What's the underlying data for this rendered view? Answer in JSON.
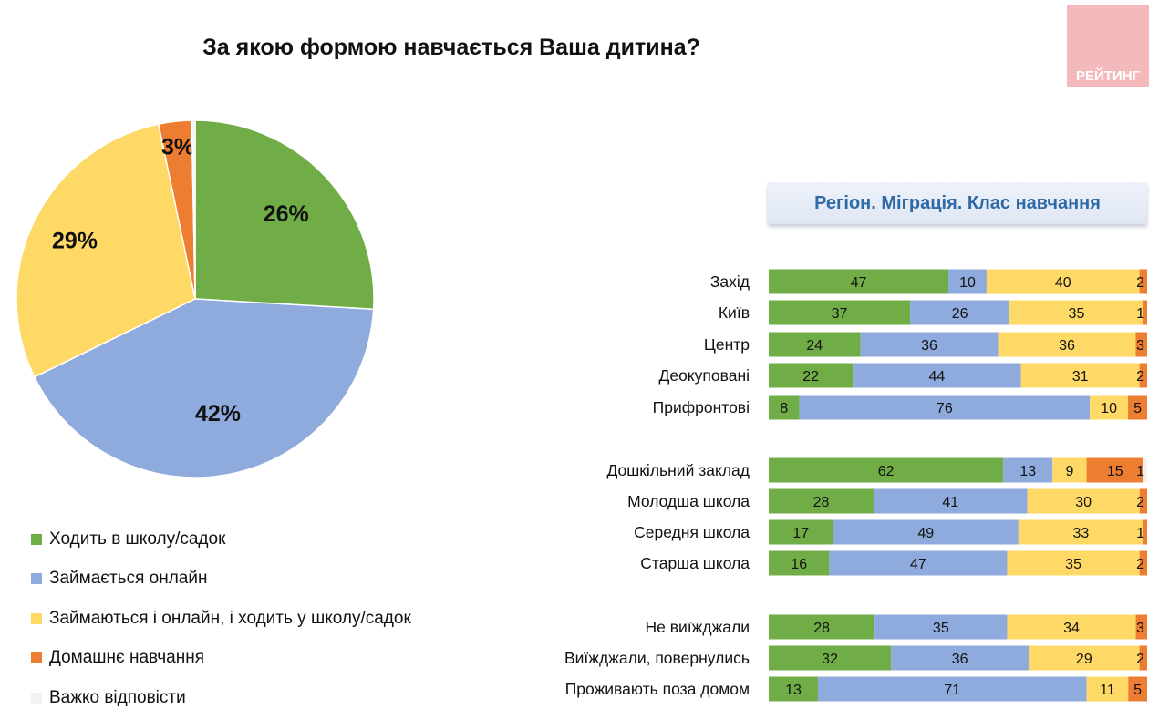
{
  "title": "За якою формою навчається Ваша дитина?",
  "logo_text": "РЕЙТИНГ",
  "bar_header": "Регіон. Міграція. Клас навчання",
  "colors": {
    "school": "#70ad47",
    "online": "#8faadc",
    "mixed": "#ffd966",
    "home": "#ed7d31",
    "dk": "#f2f2f2"
  },
  "chart_data": [
    {
      "type": "pie",
      "categories": [
        "Ходить в школу/садок",
        "Займається онлайн",
        "Займаються і онлайн, і ходить у школу/садок",
        "Домашнє навчання",
        "Важко відповісти"
      ],
      "values": [
        26,
        42,
        29,
        3,
        0.3
      ],
      "labels": [
        "26%",
        "42%",
        "29%",
        "3%",
        ""
      ],
      "legend": "bottom-left"
    },
    {
      "type": "bar",
      "orientation": "horizontal",
      "stacked": true,
      "groups": [
        {
          "rows": [
            {
              "label": "Захід",
              "values": [
                47,
                10,
                40,
                2
              ]
            },
            {
              "label": "Київ",
              "values": [
                37,
                26,
                35,
                1
              ]
            },
            {
              "label": "Центр",
              "values": [
                24,
                36,
                36,
                3
              ]
            },
            {
              "label": "Деокуповані",
              "values": [
                22,
                44,
                31,
                2
              ]
            },
            {
              "label": "Прифронтові",
              "values": [
                8,
                76,
                10,
                5
              ]
            }
          ]
        },
        {
          "rows": [
            {
              "label": "Дошкільний заклад",
              "values": [
                62,
                13,
                9,
                15,
                1
              ]
            },
            {
              "label": "Молодша школа",
              "values": [
                28,
                41,
                30,
                2
              ]
            },
            {
              "label": "Середня школа",
              "values": [
                17,
                49,
                33,
                1
              ]
            },
            {
              "label": "Старша школа",
              "values": [
                16,
                47,
                35,
                2
              ]
            }
          ]
        },
        {
          "rows": [
            {
              "label": "Не виїжджали",
              "values": [
                28,
                35,
                34,
                3
              ]
            },
            {
              "label": "Виїжджали, повернулись",
              "values": [
                32,
                36,
                29,
                2
              ]
            },
            {
              "label": "Проживають поза домом",
              "values": [
                13,
                71,
                11,
                5
              ]
            }
          ]
        }
      ]
    }
  ]
}
